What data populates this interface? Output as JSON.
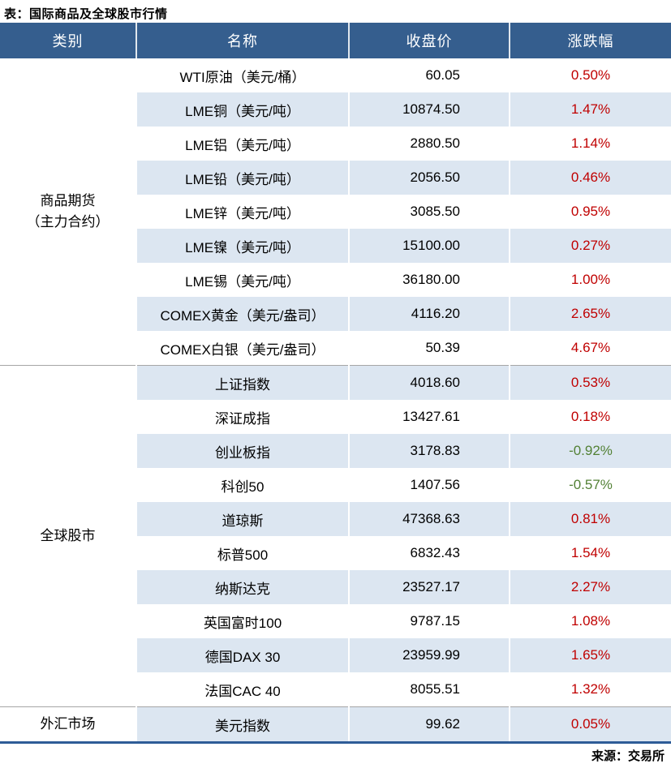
{
  "title": "表：国际商品及全球股市行情",
  "source": "来源：交易所",
  "colors": {
    "header_bg": "#355E8E",
    "alt_row_bg": "#DCE6F1",
    "up_red": "#C00000",
    "down_green": "#538135",
    "bottom_border_blue": "#2E5C97",
    "section_divider_gray": "#A6A6A6"
  },
  "chart_data": {
    "type": "table",
    "title": "国际商品及全球股市行情",
    "columns": [
      "类别",
      "名称",
      "收盘价",
      "涨跌幅"
    ],
    "sections": [
      {
        "category": "商品期货（主力合约）",
        "category_lines": [
          "商品期货",
          "（主力合约）"
        ],
        "rows": [
          {
            "name": "WTI原油（美元/桶）",
            "close": "60.05",
            "change": "0.50%"
          },
          {
            "name": "LME铜（美元/吨）",
            "close": "10874.50",
            "change": "1.47%"
          },
          {
            "name": "LME铝（美元/吨）",
            "close": "2880.50",
            "change": "1.14%"
          },
          {
            "name": "LME铅（美元/吨）",
            "close": "2056.50",
            "change": "0.46%"
          },
          {
            "name": "LME锌（美元/吨）",
            "close": "3085.50",
            "change": "0.95%"
          },
          {
            "name": "LME镍（美元/吨）",
            "close": "15100.00",
            "change": "0.27%"
          },
          {
            "name": "LME锡（美元/吨）",
            "close": "36180.00",
            "change": "1.00%"
          },
          {
            "name": "COMEX黄金（美元/盎司）",
            "close": "4116.20",
            "change": "2.65%"
          },
          {
            "name": "COMEX白银（美元/盎司）",
            "close": "50.39",
            "change": "4.67%"
          }
        ]
      },
      {
        "category": "全球股市",
        "category_lines": [
          "全球股市"
        ],
        "rows": [
          {
            "name": "上证指数",
            "close": "4018.60",
            "change": "0.53%"
          },
          {
            "name": "深证成指",
            "close": "13427.61",
            "change": "0.18%"
          },
          {
            "name": "创业板指",
            "close": "3178.83",
            "change": "-0.92%"
          },
          {
            "name": "科创50",
            "close": "1407.56",
            "change": "-0.57%"
          },
          {
            "name": "道琼斯",
            "close": "47368.63",
            "change": "0.81%"
          },
          {
            "name": "标普500",
            "close": "6832.43",
            "change": "1.54%"
          },
          {
            "name": "纳斯达克",
            "close": "23527.17",
            "change": "2.27%"
          },
          {
            "name": "英国富时100",
            "close": "9787.15",
            "change": "1.08%"
          },
          {
            "name": "德国DAX 30",
            "close": "23959.99",
            "change": "1.65%"
          },
          {
            "name": "法国CAC 40",
            "close": "8055.51",
            "change": "1.32%"
          }
        ]
      },
      {
        "category": "外汇市场",
        "category_lines": [
          "外汇市场"
        ],
        "rows": [
          {
            "name": "美元指数",
            "close": "99.62",
            "change": "0.05%"
          }
        ]
      }
    ]
  }
}
